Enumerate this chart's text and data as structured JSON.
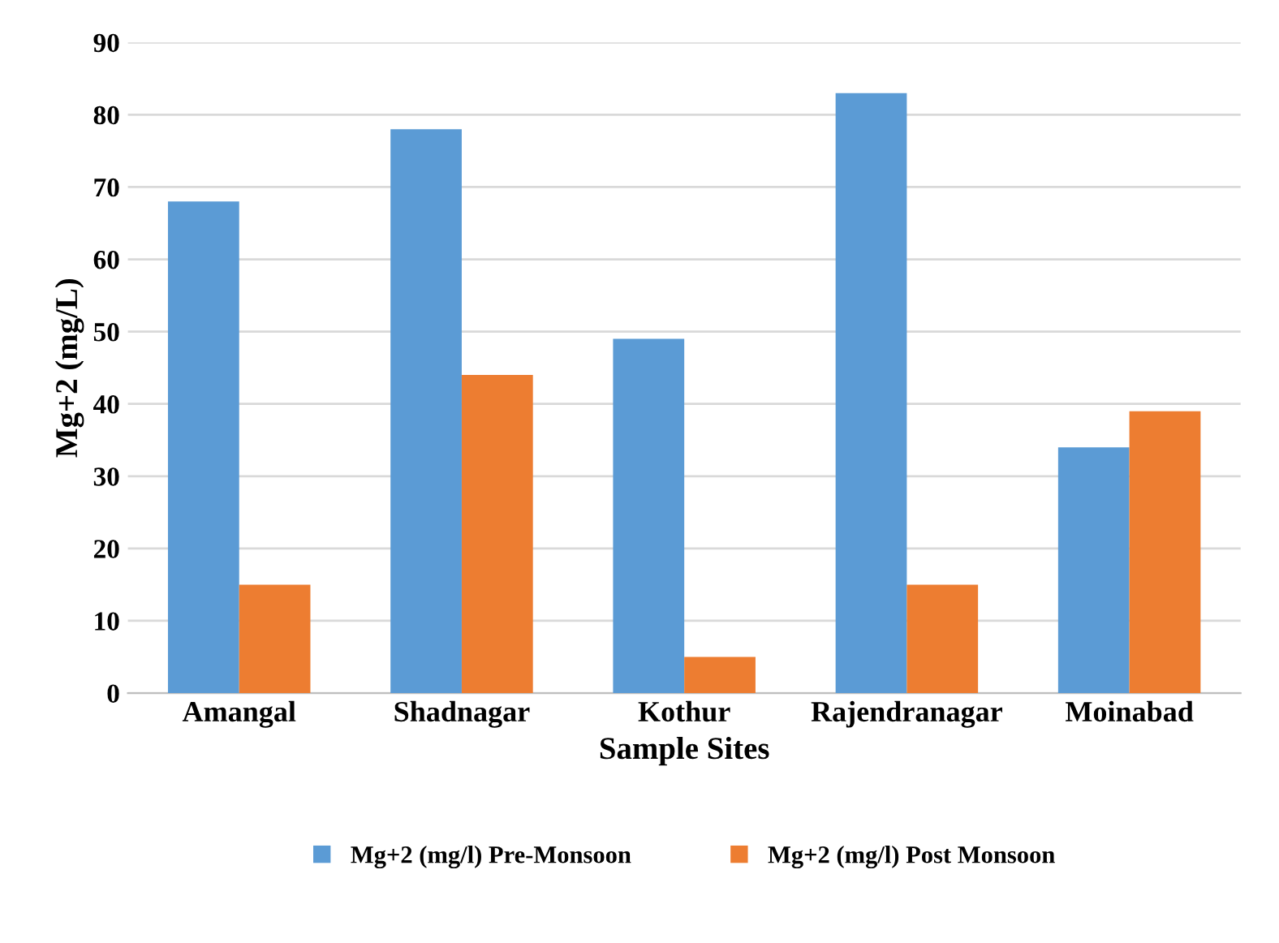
{
  "chart_data": {
    "type": "bar",
    "xlabel": "Sample Sites",
    "ylabel": "Mg+2 (mg/L)",
    "categories": [
      "Amangal",
      "Shadnagar",
      "Kothur",
      "Rajendranagar",
      "Moinabad"
    ],
    "series": [
      {
        "name": "Mg+2 (mg/l) Pre-Monsoon",
        "color": "#5b9bd5",
        "values": [
          68,
          78,
          49,
          83,
          34
        ]
      },
      {
        "name": "Mg+2 (mg/l) Post Monsoon",
        "color": "#ed7d31",
        "values": [
          15,
          44,
          5,
          15,
          39
        ]
      }
    ],
    "ylim": [
      0,
      90
    ],
    "yticks": [
      0,
      10,
      20,
      30,
      40,
      50,
      60,
      70,
      80,
      90
    ],
    "grid": "y",
    "legend": "bottom"
  }
}
